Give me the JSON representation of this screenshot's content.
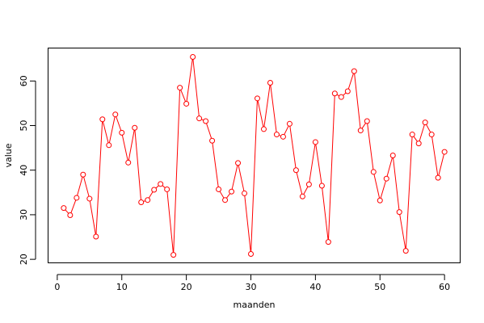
{
  "chart_data": {
    "type": "line",
    "xlabel": "maanden",
    "ylabel": "value",
    "xlim": [
      -1.36,
      62.36
    ],
    "ylim": [
      19.3,
      67.3
    ],
    "x_ticks": [
      0,
      10,
      20,
      30,
      40,
      50,
      60
    ],
    "y_ticks": [
      20,
      30,
      40,
      50,
      60
    ],
    "grid": false,
    "colors": {
      "series": "#ff0000",
      "axes": "#000000",
      "background": "#ffffff"
    },
    "series": [
      {
        "x": [
          1,
          2,
          3,
          4,
          5,
          6,
          7,
          8,
          9,
          10,
          11,
          12,
          13,
          14,
          15,
          16,
          17,
          18,
          19,
          20,
          21,
          22,
          23,
          24,
          25,
          26,
          27,
          28,
          29,
          30,
          31,
          32,
          33,
          34,
          35,
          36,
          37,
          38,
          39,
          40,
          41,
          42,
          43,
          44,
          45,
          46,
          47,
          48,
          49,
          50,
          51,
          52,
          53,
          54,
          55,
          56,
          57,
          58,
          59,
          60
        ],
        "values": [
          31.5,
          29.9,
          33.8,
          39.0,
          33.6,
          25.1,
          51.4,
          45.6,
          52.5,
          48.4,
          41.7,
          49.5,
          32.8,
          33.3,
          35.6,
          36.9,
          35.7,
          21.0,
          58.5,
          54.9,
          65.4,
          51.6,
          51.0,
          46.6,
          35.7,
          33.3,
          35.2,
          41.6,
          34.8,
          21.2,
          56.1,
          49.2,
          59.6,
          48.0,
          47.5,
          50.4,
          40.0,
          34.1,
          36.8,
          46.3,
          36.5,
          23.9,
          57.2,
          56.4,
          57.7,
          62.2,
          48.9,
          51.0,
          39.6,
          33.2,
          38.1,
          43.3,
          30.6,
          21.9,
          48.0,
          46.0,
          50.7,
          48.0,
          38.3,
          44.1
        ]
      }
    ]
  }
}
